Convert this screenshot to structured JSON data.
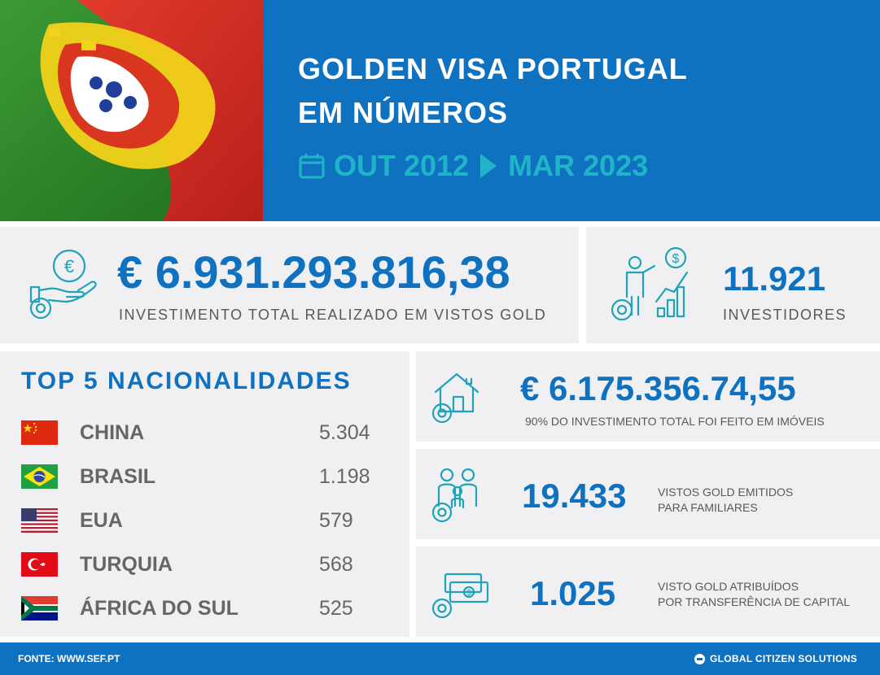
{
  "header": {
    "title_line1": "GOLDEN VISA PORTUGAL",
    "title_line2": "EM NÚMEROS",
    "date_start": "OUT 2012",
    "date_end": "MAR 2023",
    "calendar_icon": "calendar-icon",
    "arrow_icon": "play-arrow-icon",
    "colors": {
      "header_bg": "#0f72c0",
      "date": "#1fb4c8"
    }
  },
  "total_investment": {
    "amount": "€ 6.931.293.816,38",
    "caption": "INVESTIMENTO TOTAL REALIZADO EM VISTOS GOLD",
    "icon": "euro-hand-icon"
  },
  "investors": {
    "count": "11.921",
    "caption": "INVESTIDORES",
    "icon": "investor-growth-icon"
  },
  "nationalities": {
    "title": "TOP 5 NACIONALIDADES",
    "items": [
      {
        "country": "CHINA",
        "count": "5.304",
        "flag": "china-flag-icon"
      },
      {
        "country": "BRASIL",
        "count": "1.198",
        "flag": "brazil-flag-icon"
      },
      {
        "country": "EUA",
        "count": "579",
        "flag": "usa-flag-icon"
      },
      {
        "country": "TURQUIA",
        "count": "568",
        "flag": "turkey-flag-icon"
      },
      {
        "country": "ÁFRICA DO SUL",
        "count": "525",
        "flag": "south-africa-flag-icon"
      }
    ]
  },
  "real_estate": {
    "amount": "€ 6.175.356.74,55",
    "caption": "90% DO INVESTIMENTO TOTAL FOI FEITO EM IMÓVEIS",
    "icon": "house-icon"
  },
  "family_visas": {
    "count": "19.433",
    "caption_line1": "VISTOS GOLD EMITIDOS",
    "caption_line2": "PARA FAMILIARES",
    "icon": "family-icon"
  },
  "capital_transfer": {
    "count": "1.025",
    "caption_line1": "VISTO GOLD ATRIBUÍDOS",
    "caption_line2": "POR TRANSFERÊNCIA DE CAPITAL",
    "icon": "money-bills-icon"
  },
  "footer": {
    "source": "FONTE: WWW.SEF.PT",
    "brand": "GLOBAL CITIZEN SOLUTIONS",
    "brand_icon": "brand-logo-icon"
  }
}
